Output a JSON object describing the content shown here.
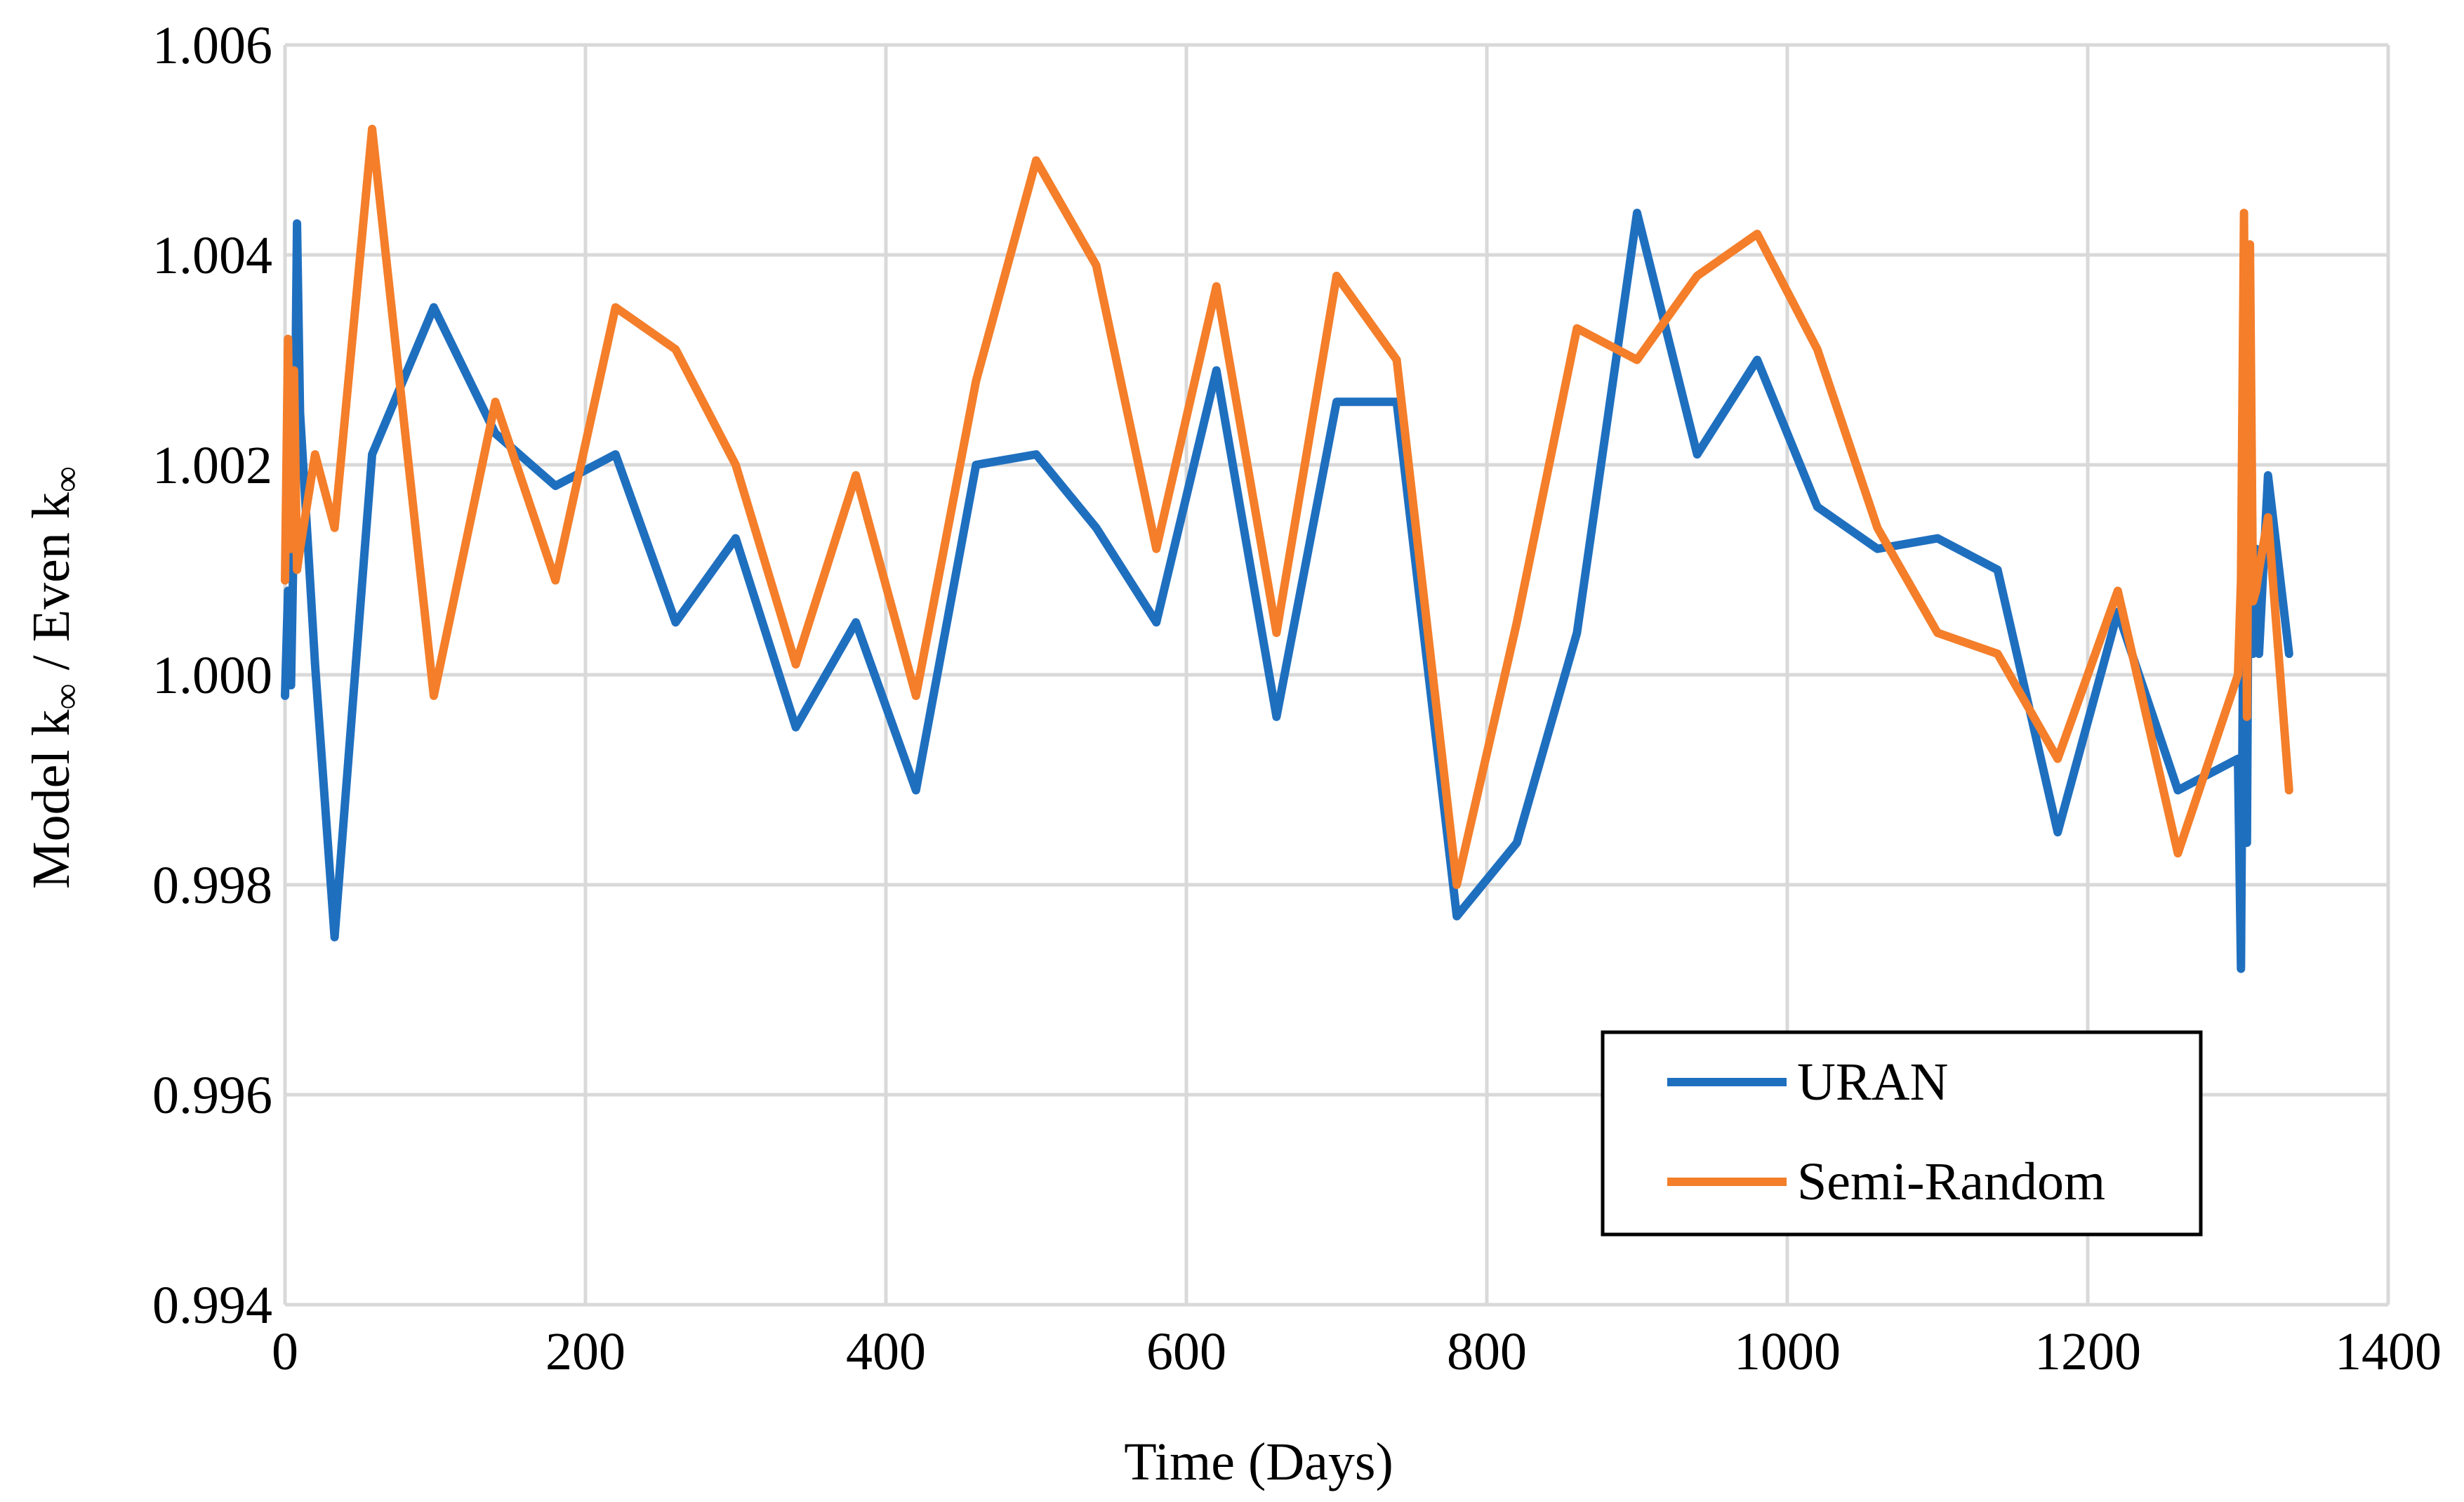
{
  "chart_data": {
    "type": "line",
    "title": "",
    "xlabel": "Time (Days)",
    "ylabel": {
      "part1": "Model k",
      "sub1": "∞",
      "part2": " / Even k",
      "sub2": "∞"
    },
    "xlim": [
      0,
      1400
    ],
    "ylim": [
      0.994,
      1.006
    ],
    "x_ticks": [
      0,
      200,
      400,
      600,
      800,
      1000,
      1200,
      1400
    ],
    "x_tick_labels": [
      "0",
      "200",
      "400",
      "600",
      "800",
      "1000",
      "1200",
      "1400"
    ],
    "y_ticks": [
      0.994,
      0.996,
      0.998,
      1.0,
      1.002,
      1.004,
      1.006
    ],
    "y_tick_labels": [
      "0.994",
      "0.996",
      "0.998",
      "1.000",
      "1.002",
      "1.004",
      "1.006"
    ],
    "grid": true,
    "legend_position": "bottom-right",
    "series": [
      {
        "name": "URAN",
        "color": "#1f6fbf",
        "x": [
          0,
          2,
          4,
          6,
          8,
          10,
          20,
          33,
          58,
          99,
          140,
          180,
          220,
          260,
          300,
          340,
          380,
          420,
          460,
          500,
          540,
          580,
          620,
          660,
          700,
          740,
          780,
          820,
          860,
          900,
          940,
          980,
          1020,
          1060,
          1100,
          1140,
          1180,
          1220,
          1260,
          1300,
          1302,
          1304,
          1306,
          1308,
          1310,
          1312,
          1314,
          1320,
          1334
        ],
        "values": [
          0.9998,
          1.0008,
          0.9999,
          1.0015,
          1.0043,
          1.0025,
          1.0001,
          0.9975,
          1.0021,
          1.0035,
          1.0023,
          1.0018,
          1.0021,
          1.0005,
          1.0013,
          0.9995,
          1.0005,
          0.9989,
          1.002,
          1.0021,
          1.0014,
          1.0005,
          1.0029,
          0.9996,
          1.0026,
          1.0026,
          0.9977,
          0.9984,
          1.0004,
          1.0044,
          1.0021,
          1.003,
          1.0016,
          1.0012,
          1.0013,
          1.001,
          0.9985,
          1.0006,
          0.9989,
          0.9992,
          0.9972,
          1.0017,
          0.9984,
          1.0038,
          1.0002,
          1.0012,
          1.0002,
          1.0019,
          1.0002
        ]
      },
      {
        "name": "Semi-Random",
        "color": "#f47e2a",
        "x": [
          0,
          2,
          4,
          6,
          8,
          10,
          20,
          33,
          58,
          99,
          140,
          180,
          220,
          260,
          300,
          340,
          380,
          420,
          460,
          500,
          540,
          580,
          620,
          660,
          700,
          740,
          780,
          820,
          860,
          900,
          940,
          980,
          1020,
          1060,
          1100,
          1140,
          1180,
          1220,
          1260,
          1300,
          1302,
          1304,
          1306,
          1308,
          1310,
          1312,
          1314,
          1320,
          1334
        ],
        "values": [
          1.0009,
          1.0032,
          1.0012,
          1.0029,
          1.001,
          1.0012,
          1.0021,
          1.0014,
          1.0052,
          0.9998,
          1.0026,
          1.0009,
          1.0035,
          1.0031,
          1.002,
          1.0001,
          1.0019,
          0.9998,
          1.0028,
          1.0049,
          1.0039,
          1.0012,
          1.0037,
          1.0004,
          1.0038,
          1.003,
          0.998,
          1.0005,
          1.0033,
          1.003,
          1.0038,
          1.0042,
          1.0031,
          1.0014,
          1.0004,
          1.0002,
          0.9992,
          1.0008,
          0.9983,
          1.0,
          1.0009,
          1.0044,
          0.9996,
          1.0041,
          1.0007,
          1.0008,
          1.001,
          1.0015,
          0.9989
        ]
      }
    ]
  }
}
